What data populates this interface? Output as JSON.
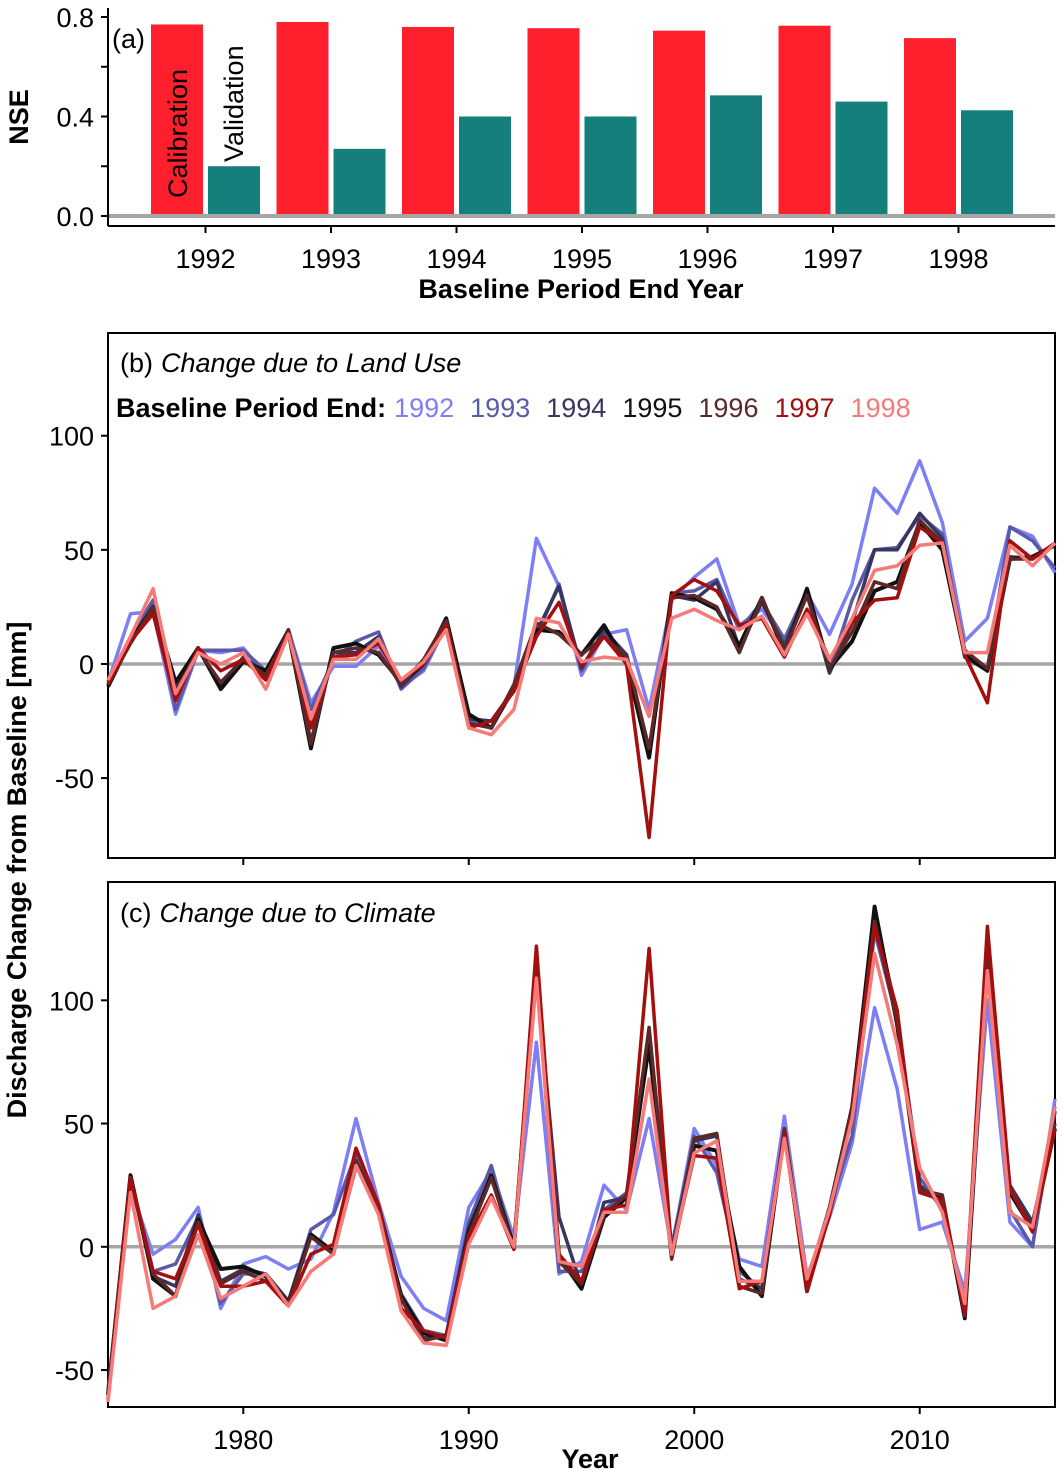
{
  "chart_data": [
    {
      "type": "bar",
      "panel": "(a)",
      "ylabel": "NSE",
      "xlabel": "Baseline Period End Year",
      "ylim": [
        0,
        0.8
      ],
      "yticks": [
        "0.0",
        "0.4",
        "0.8"
      ],
      "categories": [
        "1992",
        "1993",
        "1994",
        "1995",
        "1996",
        "1997",
        "1998"
      ],
      "series": [
        {
          "name": "Calibration",
          "color": "#ff1f2d",
          "values": [
            0.77,
            0.78,
            0.76,
            0.755,
            0.745,
            0.765,
            0.715
          ]
        },
        {
          "name": "Validation",
          "color": "#147f7b",
          "values": [
            0.2,
            0.27,
            0.4,
            0.4,
            0.485,
            0.46,
            0.425
          ]
        }
      ],
      "reference_line": 0
    },
    {
      "type": "line",
      "panel": "(b)",
      "title": "Change due to Land Use",
      "legend_title": "Baseline Period End:",
      "ylim": [
        -85,
        145
      ],
      "yticks": [
        "-50",
        "0",
        "50",
        "100"
      ],
      "x": [
        1974,
        1975,
        1976,
        1977,
        1978,
        1979,
        1980,
        1981,
        1982,
        1983,
        1984,
        1985,
        1986,
        1987,
        1988,
        1989,
        1990,
        1991,
        1992,
        1993,
        1994,
        1995,
        1996,
        1997,
        1998,
        1999,
        2000,
        2001,
        2002,
        2003,
        2004,
        2005,
        2006,
        2007,
        2008,
        2009,
        2010,
        2011,
        2012,
        2013,
        2014,
        2015,
        2016
      ],
      "series": [
        {
          "name": "1992",
          "color": "#7e7ef5",
          "values": [
            -8,
            22,
            23,
            -22,
            6,
            5,
            7,
            -5,
            15,
            -17,
            -1,
            -1,
            8,
            -10,
            -3,
            17,
            -25,
            -28,
            -10,
            55,
            34,
            -5,
            13,
            15,
            -20,
            28,
            38,
            46,
            17,
            24,
            10,
            31,
            13,
            35,
            77,
            66,
            89,
            62,
            10,
            20,
            60,
            56,
            40
          ]
        },
        {
          "name": "1993",
          "color": "#5a5aa8",
          "values": [
            -8,
            12,
            28,
            -20,
            6,
            6,
            6,
            -3,
            15,
            -20,
            2,
            10,
            14,
            -11,
            -2,
            17,
            -24,
            -28,
            -11,
            12,
            35,
            -3,
            14,
            4,
            -38,
            31,
            32,
            37,
            15,
            27,
            11,
            32,
            -3,
            28,
            50,
            51,
            65,
            57,
            3,
            -2,
            60,
            54,
            42
          ]
        },
        {
          "name": "1994",
          "color": "#363660",
          "values": [
            -9,
            11,
            24,
            -10,
            7,
            -9,
            3,
            -4,
            15,
            -34,
            5,
            5,
            12,
            -10,
            0,
            18,
            -24,
            -25,
            -11,
            14,
            34,
            -2,
            15,
            4,
            -38,
            30,
            28,
            36,
            7,
            27,
            8,
            31,
            -4,
            18,
            50,
            50,
            66,
            55,
            3,
            -3,
            47,
            46,
            53
          ]
        },
        {
          "name": "1995",
          "color": "#111111",
          "values": [
            -10,
            10,
            25,
            -8,
            7,
            -11,
            1,
            -3,
            14,
            -37,
            7,
            9,
            4,
            -8,
            0,
            20,
            -22,
            -28,
            -10,
            15,
            14,
            4,
            17,
            0,
            -41,
            31,
            29,
            24,
            8,
            29,
            5,
            33,
            -2,
            10,
            32,
            36,
            62,
            50,
            4,
            -3,
            46,
            47,
            52
          ]
        },
        {
          "name": "1996",
          "color": "#5c2828",
          "values": [
            -9,
            9,
            25,
            -12,
            6,
            -8,
            2,
            -5,
            14,
            -35,
            5,
            7,
            5,
            -9,
            2,
            19,
            -26,
            -28,
            -9,
            18,
            13,
            4,
            12,
            3,
            -37,
            29,
            30,
            25,
            5,
            29,
            6,
            30,
            -2,
            14,
            36,
            33,
            63,
            53,
            6,
            -2,
            46,
            46,
            53
          ]
        },
        {
          "name": "1997",
          "color": "#a30f0f",
          "values": [
            -9,
            10,
            22,
            -16,
            7,
            -3,
            2,
            -7,
            14,
            -28,
            3,
            4,
            9,
            -7,
            0,
            17,
            -28,
            -25,
            -12,
            12,
            27,
            -1,
            12,
            0,
            -76,
            30,
            37,
            32,
            17,
            20,
            3,
            24,
            2,
            18,
            28,
            29,
            60,
            53,
            4,
            -17,
            54,
            46,
            53
          ]
        },
        {
          "name": "1998",
          "color": "#f67b78",
          "values": [
            -7,
            12,
            33,
            -13,
            5,
            0,
            5,
            -11,
            13,
            -24,
            2,
            2,
            11,
            -7,
            1,
            15,
            -28,
            -31,
            -20,
            20,
            18,
            1,
            3,
            2,
            -23,
            20,
            24,
            19,
            15,
            21,
            4,
            22,
            2,
            20,
            41,
            43,
            52,
            53,
            5,
            5,
            52,
            43,
            53
          ]
        }
      ],
      "reference_line": 0
    },
    {
      "type": "line",
      "panel": "(c)",
      "title": "Change due to Climate",
      "ylabel": "Discharge Change from Baseline [mm]",
      "xlabel": "Year",
      "xlim": [
        1974,
        2016
      ],
      "xticks": [
        "1980",
        "1990",
        "2000",
        "2010"
      ],
      "ylim": [
        -65,
        148
      ],
      "yticks": [
        "-50",
        "0",
        "50",
        "100"
      ],
      "x": [
        1974,
        1975,
        1976,
        1977,
        1978,
        1979,
        1980,
        1981,
        1982,
        1983,
        1984,
        1985,
        1986,
        1987,
        1988,
        1989,
        1990,
        1991,
        1992,
        1993,
        1994,
        1995,
        1996,
        1997,
        1998,
        1999,
        2000,
        2001,
        2002,
        2003,
        2004,
        2005,
        2006,
        2007,
        2008,
        2009,
        2010,
        2011,
        2012,
        2013,
        2014,
        2015,
        2016
      ],
      "series": [
        {
          "name": "1992",
          "color": "#7e7ef5",
          "values": [
            -58,
            24,
            -3,
            3,
            16,
            -25,
            -7,
            -4,
            -9,
            -5,
            14,
            52,
            18,
            -12,
            -25,
            -30,
            16,
            31,
            4,
            83,
            -11,
            -6,
            25,
            15,
            52,
            -1,
            48,
            33,
            -5,
            -8,
            53,
            -12,
            12,
            42,
            97,
            64,
            7,
            10,
            -18,
            100,
            10,
            0,
            60
          ]
        },
        {
          "name": "1993",
          "color": "#5a5aa8",
          "values": [
            -60,
            28,
            -10,
            -7,
            12,
            -23,
            -11,
            -11,
            -22,
            7,
            13,
            38,
            15,
            -19,
            -34,
            -36,
            10,
            33,
            0,
            112,
            -10,
            -10,
            15,
            22,
            88,
            0,
            45,
            30,
            -10,
            -17,
            46,
            -14,
            16,
            45,
            128,
            92,
            28,
            15,
            -24,
            113,
            15,
            0,
            55
          ]
        },
        {
          "name": "1994",
          "color": "#363660",
          "values": [
            -60,
            29,
            -12,
            -16,
            13,
            -14,
            -9,
            -11,
            -22,
            4,
            -2,
            34,
            17,
            -21,
            -37,
            -36,
            8,
            28,
            0,
            110,
            12,
            -16,
            18,
            20,
            82,
            -2,
            43,
            45,
            -13,
            -17,
            45,
            -16,
            16,
            57,
            135,
            94,
            25,
            17,
            -26,
            115,
            25,
            10,
            50
          ]
        },
        {
          "name": "1995",
          "color": "#111111",
          "values": [
            -60,
            29,
            -13,
            -20,
            11,
            -9,
            -8,
            -12,
            -23,
            5,
            -2,
            33,
            16,
            -20,
            -35,
            -38,
            6,
            29,
            0,
            113,
            -4,
            -17,
            12,
            20,
            82,
            -4,
            41,
            39,
            -8,
            -20,
            47,
            -18,
            15,
            56,
            138,
            90,
            23,
            20,
            -29,
            115,
            22,
            7,
            48
          ]
        },
        {
          "name": "1996",
          "color": "#5c2828",
          "values": [
            -60,
            28,
            -11,
            -20,
            10,
            -15,
            -10,
            -14,
            -23,
            4,
            -3,
            35,
            16,
            -21,
            -38,
            -36,
            5,
            28,
            -1,
            118,
            -6,
            -15,
            13,
            21,
            89,
            -5,
            44,
            46,
            -16,
            -19,
            48,
            -17,
            16,
            56,
            132,
            91,
            23,
            21,
            -28,
            123,
            23,
            8,
            55
          ]
        },
        {
          "name": "1997",
          "color": "#a30f0f",
          "values": [
            -62,
            28,
            -10,
            -13,
            9,
            -16,
            -16,
            -14,
            -24,
            -3,
            1,
            40,
            17,
            -25,
            -34,
            -37,
            4,
            21,
            -1,
            122,
            -3,
            -14,
            15,
            17,
            121,
            -3,
            37,
            36,
            -17,
            -14,
            46,
            -18,
            13,
            54,
            130,
            96,
            22,
            19,
            -27,
            130,
            24,
            6,
            48
          ]
        },
        {
          "name": "1998",
          "color": "#f67b78",
          "values": [
            -63,
            22,
            -25,
            -20,
            5,
            -21,
            -16,
            -11,
            -24,
            -10,
            -3,
            33,
            13,
            -26,
            -39,
            -40,
            1,
            20,
            0,
            109,
            -6,
            -8,
            14,
            14,
            68,
            -3,
            38,
            43,
            -14,
            -14,
            44,
            -13,
            15,
            52,
            119,
            82,
            32,
            14,
            -23,
            112,
            14,
            8,
            57
          ]
        }
      ],
      "reference_line": 0
    }
  ],
  "annotations": {
    "bar_series_labels": [
      "Calibration",
      "Validation"
    ],
    "panel_a_tag": "(a)",
    "panel_b_tag": "(b)",
    "panel_c_tag": "(c)"
  }
}
